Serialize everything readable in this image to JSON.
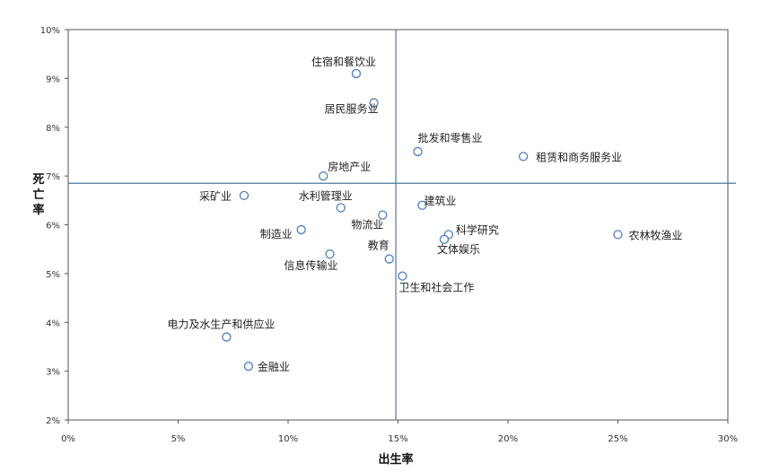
{
  "chart_data": {
    "type": "scatter",
    "title": "",
    "xlabel": "出生率",
    "ylabel": "死亡率",
    "xlim": [
      0,
      30
    ],
    "ylim": [
      2,
      10
    ],
    "x_ticks": [
      "0%",
      "5%",
      "10%",
      "15%",
      "20%",
      "25%",
      "30%"
    ],
    "y_ticks": [
      "2%",
      "3%",
      "4%",
      "5%",
      "6%",
      "7%",
      "8%",
      "9%",
      "10%"
    ],
    "reference_lines": {
      "x": 14.9,
      "y": 6.85
    },
    "grid": false,
    "legend": "none",
    "marker_color": "#4f7fbf",
    "points": [
      {
        "label": "住宿和餐饮业",
        "x": 13.1,
        "y": 9.1
      },
      {
        "label": "居民服务业",
        "x": 13.9,
        "y": 8.5
      },
      {
        "label": "批发和零售业",
        "x": 15.9,
        "y": 7.5
      },
      {
        "label": "租赁和商务服务业",
        "x": 20.7,
        "y": 7.4
      },
      {
        "label": "房地产业",
        "x": 11.6,
        "y": 7.0
      },
      {
        "label": "采矿业",
        "x": 8.0,
        "y": 6.6
      },
      {
        "label": "水利管理业",
        "x": 12.4,
        "y": 6.35
      },
      {
        "label": "建筑业",
        "x": 16.1,
        "y": 6.4
      },
      {
        "label": "物流业",
        "x": 14.3,
        "y": 6.2
      },
      {
        "label": "制造业",
        "x": 10.6,
        "y": 5.9
      },
      {
        "label": "科学研究",
        "x": 17.3,
        "y": 5.8
      },
      {
        "label": "文体娱乐",
        "x": 17.1,
        "y": 5.7
      },
      {
        "label": "农林牧渔业",
        "x": 25.0,
        "y": 5.8
      },
      {
        "label": "信息传输业",
        "x": 11.9,
        "y": 5.4
      },
      {
        "label": "教育",
        "x": 14.6,
        "y": 5.3
      },
      {
        "label": "卫生和社会工作",
        "x": 15.2,
        "y": 4.95
      },
      {
        "label": "电力及水生产和供应业",
        "x": 7.2,
        "y": 3.7
      },
      {
        "label": "金融业",
        "x": 8.2,
        "y": 3.1
      }
    ]
  }
}
